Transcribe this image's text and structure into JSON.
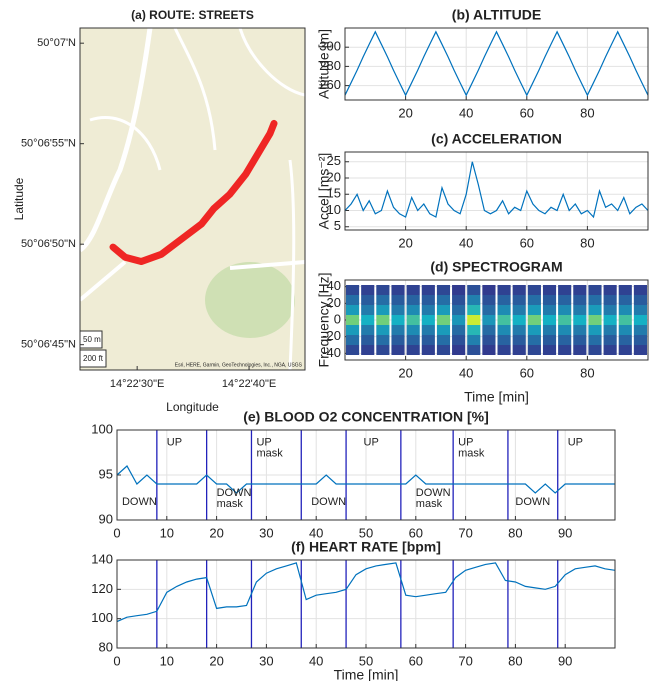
{
  "chart_data": [
    {
      "type": "map",
      "title": "(a) ROUTE: STREETS",
      "xlabel": "Longitude",
      "ylabel": "Latitude",
      "xlim": [
        14.37358,
        14.37917
      ],
      "ylim": [
        50.11215,
        50.11688
      ],
      "xticks": [
        {
          "value": 14.375,
          "label": "14°22'30\"E"
        },
        {
          "value": 14.37778,
          "label": "14°22'40\"E"
        }
      ],
      "yticks": [
        {
          "value": 50.1125,
          "label": "50°06'45\"N"
        },
        {
          "value": 50.11389,
          "label": "50°06'50\"N"
        },
        {
          "value": 50.11528,
          "label": "50°06'55\"N"
        },
        {
          "value": 50.11667,
          "label": "50°07'N"
        }
      ],
      "x": [
        14.3744,
        14.3747,
        14.3751,
        14.3756,
        14.3761,
        14.3766,
        14.3769,
        14.3773,
        14.3777,
        14.378,
        14.3783,
        14.3784
      ],
      "values": [
        50.11385,
        50.11371,
        50.11365,
        50.11375,
        50.11396,
        50.11417,
        50.11438,
        50.11458,
        50.11486,
        50.11514,
        50.11542,
        50.11556
      ],
      "color": "#ee1111",
      "scale_labels": [
        "50 m",
        "200 ft"
      ],
      "attribution": "Esri, HERE, Garmin, GeoTechnologies, Inc., NGA, USGS"
    },
    {
      "type": "line",
      "title": "(b) ALTITUDE",
      "ylabel": "Altitude [m]",
      "color": "#0072bd",
      "grid": true,
      "xlim": [
        0,
        100
      ],
      "ylim": [
        245,
        320
      ],
      "xticks": [
        20,
        40,
        60,
        80
      ],
      "yticks": [
        260,
        280,
        300
      ],
      "x": [
        0,
        2,
        4,
        6,
        8,
        10,
        12,
        14,
        16,
        18,
        20,
        22,
        24,
        26,
        28,
        30,
        32,
        34,
        36,
        38,
        40,
        42,
        44,
        46,
        48,
        50,
        52,
        54,
        56,
        58,
        60,
        62,
        64,
        66,
        68,
        70,
        72,
        74,
        76,
        78,
        80,
        82,
        84,
        86,
        88,
        90,
        92,
        94,
        96,
        98,
        100
      ],
      "values": [
        250,
        263,
        276,
        290,
        303,
        316,
        303,
        290,
        276,
        263,
        250,
        263,
        276,
        290,
        303,
        316,
        303,
        290,
        276,
        263,
        250,
        263,
        276,
        290,
        303,
        316,
        303,
        290,
        276,
        263,
        250,
        263,
        276,
        290,
        303,
        316,
        303,
        290,
        276,
        263,
        250,
        263,
        276,
        290,
        303,
        316,
        303,
        290,
        276,
        263,
        250
      ]
    },
    {
      "type": "line",
      "title": "(c) ACCELERATION",
      "ylabel": "Accel [ms⁻²]",
      "color": "#0072bd",
      "grid": true,
      "xlim": [
        0,
        100
      ],
      "ylim": [
        4,
        28
      ],
      "xticks": [
        20,
        40,
        60,
        80
      ],
      "yticks": [
        5,
        10,
        15,
        20,
        25
      ],
      "x": [
        0,
        2,
        4,
        6,
        8,
        10,
        12,
        14,
        16,
        18,
        20,
        22,
        24,
        26,
        28,
        30,
        32,
        34,
        36,
        38,
        40,
        42,
        44,
        46,
        48,
        50,
        52,
        54,
        56,
        58,
        60,
        62,
        64,
        66,
        68,
        70,
        72,
        74,
        76,
        78,
        80,
        82,
        84,
        86,
        88,
        90,
        92,
        94,
        96,
        98,
        100
      ],
      "values": [
        10,
        12,
        15,
        10,
        13,
        9,
        10,
        16,
        11,
        9,
        8,
        14,
        10,
        12,
        9,
        8,
        17,
        12,
        10,
        9,
        15,
        25,
        18,
        10,
        9,
        10,
        13,
        9,
        11,
        10,
        16,
        12,
        10,
        9,
        11,
        10,
        15,
        10,
        12,
        9,
        10,
        8,
        16,
        11,
        12,
        10,
        14,
        9,
        11,
        12,
        10
      ]
    },
    {
      "type": "heatmap",
      "title": "(d) SPECTROGRAM",
      "ylabel": "Frequency [Hz]",
      "xlabel": "Time [min]",
      "grid": true,
      "xlim": [
        0,
        100
      ],
      "ylim": [
        -48,
        48
      ],
      "xticks": [
        20,
        40,
        60,
        80
      ],
      "yticks": [
        -40,
        -20,
        0,
        20,
        40
      ],
      "x": [
        2.5,
        7.5,
        12.5,
        17.5,
        22.5,
        27.5,
        32.5,
        37.5,
        42.5,
        47.5,
        52.5,
        57.5,
        62.5,
        67.5,
        72.5,
        77.5,
        82.5,
        87.5,
        92.5,
        97.5
      ],
      "y": [
        -36,
        -24,
        -12,
        0,
        12,
        24,
        36
      ],
      "z": [
        [
          0.11,
          0.08,
          0.11,
          0.08,
          0.09,
          0.08,
          0.11,
          0.06,
          0.14,
          0.06,
          0.09,
          0.08,
          0.11,
          0.08,
          0.09,
          0.08,
          0.11,
          0.08,
          0.09,
          0.08
        ],
        [
          0.25,
          0.18,
          0.25,
          0.18,
          0.21,
          0.18,
          0.25,
          0.14,
          0.32,
          0.14,
          0.21,
          0.18,
          0.25,
          0.18,
          0.21,
          0.18,
          0.25,
          0.18,
          0.21,
          0.18
        ],
        [
          0.42,
          0.3,
          0.42,
          0.3,
          0.36,
          0.3,
          0.42,
          0.24,
          0.54,
          0.24,
          0.36,
          0.3,
          0.42,
          0.3,
          0.36,
          0.3,
          0.42,
          0.3,
          0.36,
          0.3
        ],
        [
          0.7,
          0.5,
          0.7,
          0.5,
          0.6,
          0.5,
          0.7,
          0.4,
          0.9,
          0.4,
          0.6,
          0.5,
          0.7,
          0.5,
          0.6,
          0.5,
          0.7,
          0.5,
          0.6,
          0.5
        ],
        [
          0.42,
          0.3,
          0.42,
          0.3,
          0.36,
          0.3,
          0.42,
          0.24,
          0.54,
          0.24,
          0.36,
          0.3,
          0.42,
          0.3,
          0.36,
          0.3,
          0.42,
          0.3,
          0.36,
          0.3
        ],
        [
          0.25,
          0.18,
          0.25,
          0.18,
          0.21,
          0.18,
          0.25,
          0.14,
          0.32,
          0.14,
          0.21,
          0.18,
          0.25,
          0.18,
          0.21,
          0.18,
          0.25,
          0.18,
          0.21,
          0.18
        ],
        [
          0.11,
          0.08,
          0.11,
          0.08,
          0.09,
          0.08,
          0.11,
          0.06,
          0.14,
          0.06,
          0.09,
          0.08,
          0.11,
          0.08,
          0.09,
          0.08,
          0.11,
          0.08,
          0.09,
          0.08
        ]
      ]
    },
    {
      "type": "line",
      "title": "(e) BLOOD O2 CONCENTRATION [%]",
      "color": "#0072bd",
      "marker_color": "#2222bb",
      "grid": true,
      "xlim": [
        0,
        100
      ],
      "ylim": [
        90,
        100
      ],
      "xticks": [
        0,
        10,
        20,
        30,
        40,
        50,
        60,
        70,
        80,
        90
      ],
      "yticks": [
        90,
        95,
        100
      ],
      "x": [
        0,
        2,
        4,
        6,
        8,
        10,
        12,
        14,
        16,
        18,
        20,
        22,
        24,
        26,
        28,
        30,
        32,
        34,
        36,
        38,
        40,
        42,
        44,
        46,
        48,
        50,
        52,
        54,
        56,
        58,
        60,
        62,
        64,
        66,
        68,
        70,
        72,
        74,
        76,
        78,
        80,
        82,
        84,
        86,
        88,
        90,
        92,
        94,
        96,
        98,
        100
      ],
      "values": [
        95,
        96,
        94,
        95,
        94,
        94,
        94,
        94,
        94,
        95,
        94,
        94,
        93,
        94,
        94,
        94,
        94,
        94,
        94,
        94,
        94,
        95,
        94,
        94,
        94,
        94,
        94,
        94,
        94,
        94,
        95,
        94,
        94,
        94,
        94,
        94,
        94,
        94,
        94,
        94,
        94,
        94,
        93,
        94,
        93,
        94,
        94,
        94,
        94,
        94,
        94
      ],
      "markers": [
        8,
        18,
        27,
        37,
        46,
        57,
        67.5,
        78.5,
        88.5
      ],
      "annotations": [
        {
          "x": 1,
          "y": 92,
          "lines": [
            "DOWN"
          ]
        },
        {
          "x": 10,
          "y": 98.6,
          "lines": [
            "UP"
          ]
        },
        {
          "x": 20,
          "y": 93,
          "lines": [
            "DOWN",
            "mask"
          ]
        },
        {
          "x": 28,
          "y": 98.6,
          "lines": [
            "UP",
            "mask"
          ]
        },
        {
          "x": 39,
          "y": 92,
          "lines": [
            "DOWN"
          ]
        },
        {
          "x": 49.5,
          "y": 98.6,
          "lines": [
            "UP"
          ]
        },
        {
          "x": 60,
          "y": 93,
          "lines": [
            "DOWN",
            "mask"
          ]
        },
        {
          "x": 68.5,
          "y": 98.6,
          "lines": [
            "UP",
            "mask"
          ]
        },
        {
          "x": 80,
          "y": 92,
          "lines": [
            "DOWN"
          ]
        },
        {
          "x": 90.5,
          "y": 98.6,
          "lines": [
            "UP"
          ]
        }
      ]
    },
    {
      "type": "line",
      "title": "(f) HEART RATE [bpm]",
      "xlabel": "Time [min]",
      "color": "#0072bd",
      "marker_color": "#2222bb",
      "grid": true,
      "xlim": [
        0,
        100
      ],
      "ylim": [
        80,
        140
      ],
      "xticks": [
        0,
        10,
        20,
        30,
        40,
        50,
        60,
        70,
        80,
        90
      ],
      "yticks": [
        80,
        100,
        120,
        140
      ],
      "x": [
        0,
        2,
        4,
        6,
        8,
        10,
        12,
        14,
        16,
        18,
        20,
        22,
        24,
        26,
        28,
        30,
        32,
        34,
        36,
        38,
        40,
        42,
        44,
        46,
        48,
        50,
        52,
        54,
        56,
        58,
        60,
        62,
        64,
        66,
        68,
        70,
        72,
        74,
        76,
        78,
        80,
        82,
        84,
        86,
        88,
        90,
        92,
        94,
        96,
        98,
        100
      ],
      "values": [
        98,
        101,
        102,
        103,
        105,
        118,
        122,
        125,
        127,
        128,
        107,
        108,
        108,
        109,
        125,
        131,
        134,
        136,
        138,
        113,
        116,
        117,
        118,
        120,
        130,
        134,
        136,
        137,
        138,
        116,
        115,
        116,
        117,
        118,
        128,
        133,
        135,
        137,
        138,
        126,
        125,
        122,
        121,
        120,
        122,
        130,
        134,
        135,
        136,
        134,
        133
      ],
      "markers": [
        8,
        18,
        27,
        37,
        46,
        57,
        67.5,
        78.5,
        88.5
      ]
    }
  ]
}
